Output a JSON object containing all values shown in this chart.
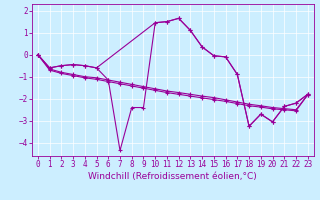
{
  "xlabel": "Windchill (Refroidissement éolien,°C)",
  "bg_color": "#cceeff",
  "line_color": "#990099",
  "xlim": [
    -0.5,
    23.5
  ],
  "ylim": [
    -4.6,
    2.3
  ],
  "xticks": [
    0,
    1,
    2,
    3,
    4,
    5,
    6,
    7,
    8,
    9,
    10,
    11,
    12,
    13,
    14,
    15,
    16,
    17,
    18,
    19,
    20,
    21,
    22,
    23
  ],
  "yticks": [
    -4,
    -3,
    -2,
    -1,
    0,
    1,
    2
  ],
  "s1x": [
    0,
    1,
    2,
    3,
    4,
    5,
    6,
    7,
    8,
    9,
    10,
    11,
    12,
    13,
    14,
    15,
    16,
    17,
    18,
    19,
    20,
    21,
    22,
    23
  ],
  "s1y": [
    0.0,
    -0.6,
    -0.5,
    -0.45,
    -0.5,
    -0.6,
    -1.15,
    -4.35,
    -2.4,
    -2.4,
    1.45,
    1.5,
    1.65,
    1.1,
    0.35,
    -0.05,
    -0.1,
    -0.9,
    -3.25,
    -2.7,
    -3.05,
    -2.35,
    -2.2,
    -1.8
  ],
  "s2x": [
    0,
    1,
    2,
    3,
    4,
    5,
    10,
    11,
    12,
    13,
    14,
    15,
    16,
    17,
    18,
    19,
    20,
    21,
    22,
    23
  ],
  "s2y": [
    0.0,
    -0.6,
    -0.5,
    -0.45,
    -0.5,
    -0.6,
    1.45,
    1.5,
    1.65,
    1.1,
    0.35,
    -0.05,
    -0.1,
    -0.9,
    -3.25,
    -2.7,
    -3.05,
    -2.35,
    -2.2,
    -1.8
  ],
  "s3x": [
    0,
    1,
    2,
    3,
    4,
    5,
    6,
    7,
    8,
    9,
    10,
    11,
    12,
    13,
    14,
    15,
    16,
    17,
    18,
    19,
    20,
    21,
    22,
    23
  ],
  "s3y": [
    0.0,
    -0.65,
    -0.8,
    -0.9,
    -1.0,
    -1.05,
    -1.15,
    -1.25,
    -1.35,
    -1.45,
    -1.55,
    -1.65,
    -1.72,
    -1.8,
    -1.88,
    -1.95,
    -2.05,
    -2.15,
    -2.25,
    -2.32,
    -2.4,
    -2.45,
    -2.5,
    -1.82
  ],
  "s4x": [
    0,
    1,
    2,
    3,
    4,
    5,
    6,
    7,
    8,
    9,
    10,
    11,
    12,
    13,
    14,
    15,
    16,
    17,
    18,
    19,
    20,
    21,
    22,
    23
  ],
  "s4y": [
    0.0,
    -0.7,
    -0.85,
    -0.95,
    -1.05,
    -1.12,
    -1.22,
    -1.32,
    -1.42,
    -1.52,
    -1.62,
    -1.72,
    -1.8,
    -1.88,
    -1.96,
    -2.04,
    -2.12,
    -2.22,
    -2.32,
    -2.38,
    -2.46,
    -2.5,
    -2.55,
    -1.82
  ],
  "marker": "+",
  "markersize": 3,
  "linewidth": 0.8,
  "label_fontsize": 6.5,
  "tick_fontsize": 5.5
}
